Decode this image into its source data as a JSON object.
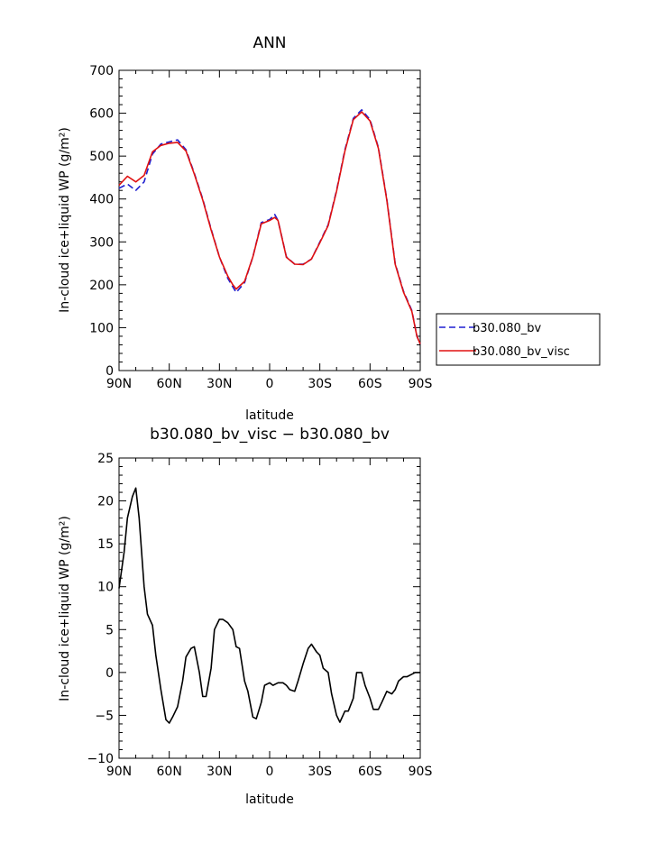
{
  "chart_data": [
    {
      "type": "line",
      "title": "ANN",
      "xlabel": "latitude",
      "ylabel": "In-cloud ice+liquid WP (g/m²)",
      "xlim": [
        90,
        -90
      ],
      "ylim": [
        0,
        700
      ],
      "xticks": [
        90,
        60,
        30,
        0,
        -30,
        -60,
        -90
      ],
      "xticklabels": [
        "90N",
        "60N",
        "30N",
        "0",
        "30S",
        "60S",
        "90S"
      ],
      "yticks": [
        0,
        100,
        200,
        300,
        400,
        500,
        600,
        700
      ],
      "yticklabels": [
        "0",
        "100",
        "200",
        "300",
        "400",
        "500",
        "600",
        "700"
      ],
      "grid": false,
      "legend": "right",
      "x": [
        90,
        85,
        80,
        75,
        70,
        65,
        60,
        55,
        50,
        45,
        40,
        35,
        30,
        25,
        22,
        20,
        15,
        10,
        5,
        0,
        -3,
        -5,
        -10,
        -15,
        -20,
        -25,
        -30,
        -35,
        -40,
        -45,
        -50,
        -55,
        -60,
        -65,
        -70,
        -75,
        -80,
        -85,
        -88,
        -90
      ],
      "series": [
        {
          "name": "b30.080_bv",
          "color": "#1f1fd0",
          "dash": "7,4",
          "values": [
            425,
            435,
            420,
            440,
            505,
            528,
            533,
            538,
            515,
            460,
            400,
            330,
            265,
            215,
            195,
            182,
            205,
            265,
            345,
            352,
            364,
            350,
            265,
            248,
            248,
            260,
            300,
            340,
            420,
            515,
            588,
            608,
            585,
            520,
            400,
            250,
            185,
            140,
            80,
            62
          ]
        },
        {
          "name": "b30.080_bv_visc",
          "color": "#e01010",
          "dash": "",
          "values": [
            432,
            453,
            440,
            455,
            510,
            525,
            530,
            532,
            512,
            458,
            398,
            328,
            265,
            220,
            200,
            190,
            208,
            265,
            342,
            350,
            357,
            350,
            264,
            248,
            247,
            260,
            298,
            338,
            418,
            512,
            585,
            603,
            582,
            518,
            398,
            248,
            183,
            138,
            80,
            62
          ]
        }
      ]
    },
    {
      "type": "line",
      "title": "b30.080_bv_visc − b30.080_bv",
      "xlabel": "latitude",
      "ylabel": "In-cloud ice+liquid WP (g/m²)",
      "xlim": [
        90,
        -90
      ],
      "ylim": [
        -10,
        25
      ],
      "xticks": [
        90,
        60,
        30,
        0,
        -30,
        -60,
        -90
      ],
      "xticklabels": [
        "90N",
        "60N",
        "30N",
        "0",
        "30S",
        "60S",
        "90S"
      ],
      "yticks": [
        -10,
        -5,
        0,
        5,
        10,
        15,
        20,
        25
      ],
      "yticklabels": [
        "−10",
        "−5",
        "0",
        "5",
        "10",
        "15",
        "20",
        "25"
      ],
      "grid": false,
      "x": [
        90,
        87,
        85,
        82,
        80,
        78,
        75,
        73,
        70,
        68,
        65,
        62,
        60,
        58,
        55,
        52,
        50,
        47,
        45,
        42,
        40,
        38,
        35,
        33,
        30,
        28,
        25,
        22,
        20,
        18,
        15,
        13,
        10,
        8,
        5,
        3,
        0,
        -2,
        -5,
        -8,
        -10,
        -12,
        -15,
        -17,
        -20,
        -23,
        -25,
        -28,
        -30,
        -32,
        -35,
        -37,
        -40,
        -42,
        -45,
        -47,
        -50,
        -52,
        -55,
        -57,
        -60,
        -62,
        -65,
        -67,
        -70,
        -73,
        -75,
        -77,
        -80,
        -82,
        -85,
        -87,
        -90
      ],
      "series": [
        {
          "name": "",
          "color": "#000000",
          "dash": "",
          "values": [
            9.8,
            14,
            18,
            20.5,
            21.5,
            18,
            10,
            6.8,
            5.5,
            2,
            -2,
            -5.5,
            -5.9,
            -5.2,
            -4,
            -1,
            1.8,
            2.8,
            3,
            0,
            -2.8,
            -2.8,
            0.5,
            5,
            6.2,
            6.2,
            5.8,
            5,
            3,
            2.8,
            -1,
            -2.2,
            -5.2,
            -5.4,
            -3.5,
            -1.5,
            -1.2,
            -1.5,
            -1.2,
            -1.2,
            -1.5,
            -2,
            -2.2,
            -1,
            1,
            2.8,
            3.3,
            2.4,
            2,
            0.5,
            0,
            -2.5,
            -5,
            -5.8,
            -4.5,
            -4.5,
            -3,
            0,
            0,
            -1.5,
            -3,
            -4.3,
            -4.3,
            -3.5,
            -2.2,
            -2.5,
            -2,
            -1,
            -0.5,
            -0.5,
            -0.2,
            0,
            0
          ]
        }
      ]
    }
  ]
}
